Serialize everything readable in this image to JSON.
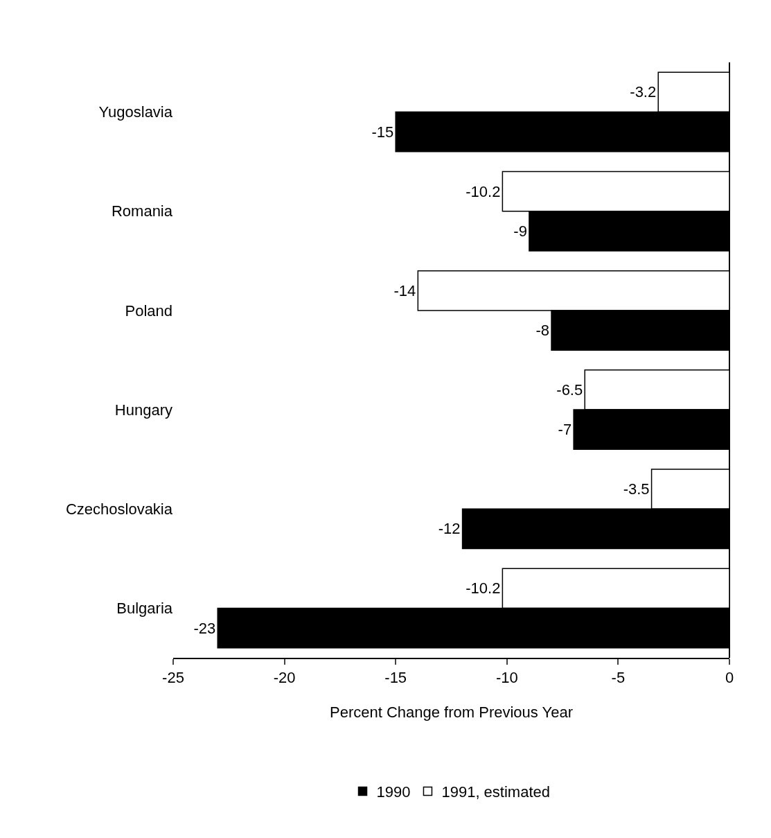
{
  "chart_data": {
    "type": "bar",
    "orientation": "horizontal",
    "xlabel": "Percent Change from Previous Year",
    "categories": [
      "Yugoslavia",
      "Romania",
      "Poland",
      "Hungary",
      "Czechoslovakia",
      "Bulgaria"
    ],
    "series": [
      {
        "name": "1990",
        "color": "#000000",
        "values": [
          -15,
          -9,
          -8,
          -7,
          -12,
          -23
        ]
      },
      {
        "name": "1991, estimated",
        "color": "#ffffff",
        "values": [
          -3.2,
          -10.2,
          -14,
          -6.5,
          -3.5,
          -10.2
        ]
      }
    ],
    "xlim": [
      -25,
      0
    ],
    "xticks": [
      -25,
      -20,
      -15,
      -10,
      -5,
      0
    ],
    "data_labels": true,
    "legend": "bottom"
  }
}
